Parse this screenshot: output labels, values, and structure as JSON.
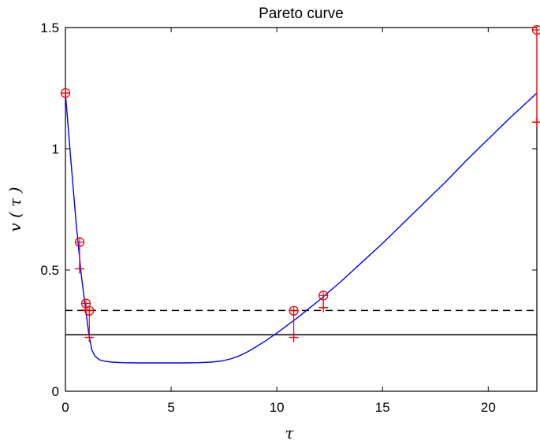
{
  "chart_data": {
    "type": "line",
    "title": "Pareto curve",
    "xlabel": "τ",
    "ylabel": "v ( τ )",
    "xlim": [
      0,
      22.3
    ],
    "ylim": [
      0,
      1.5
    ],
    "xticks": [
      {
        "value": 0,
        "label": "0"
      },
      {
        "value": 5,
        "label": "5"
      },
      {
        "value": 10,
        "label": "10"
      },
      {
        "value": 15,
        "label": "15"
      },
      {
        "value": 20,
        "label": "20"
      }
    ],
    "yticks": [
      {
        "value": 0,
        "label": "0"
      },
      {
        "value": 0.5,
        "label": "0.5"
      },
      {
        "value": 1,
        "label": "1"
      },
      {
        "value": 1.5,
        "label": "1.5"
      }
    ],
    "grid": false,
    "colors": {
      "curve": "#0000ff",
      "markers": "#ff0000",
      "lines": "#000000"
    },
    "series": [
      {
        "style": "solid",
        "color": "#0000ff",
        "x": [
          0,
          0.25,
          0.5,
          0.75,
          0.95,
          1.1,
          1.25,
          1.4,
          1.6,
          1.85,
          2.2,
          2.7,
          3.5,
          4.5,
          5.5,
          6.3,
          6.9,
          7.4,
          7.8,
          8.2,
          8.6,
          9.0,
          9.5,
          10.0,
          11.0,
          12.0,
          13.0,
          14.0,
          15.0,
          16.0,
          17.0,
          18.0,
          19.0,
          20.0,
          21.0,
          22.3
        ],
        "y": [
          1.23,
          0.96,
          0.7,
          0.48,
          0.34,
          0.24,
          0.17,
          0.145,
          0.13,
          0.124,
          0.12,
          0.118,
          0.117,
          0.117,
          0.117,
          0.118,
          0.12,
          0.125,
          0.133,
          0.145,
          0.162,
          0.182,
          0.21,
          0.24,
          0.305,
          0.375,
          0.45,
          0.53,
          0.61,
          0.695,
          0.78,
          0.865,
          0.955,
          1.04,
          1.125,
          1.23
        ]
      }
    ],
    "hlines": [
      {
        "y": 0.333,
        "style": "dashed",
        "color": "#000000"
      },
      {
        "y": 0.233,
        "style": "solid",
        "color": "#000000"
      }
    ],
    "markers": [
      {
        "x": 0.0,
        "circle": 1.23,
        "plus": 1.23
      },
      {
        "x": 0.67,
        "circle": 0.615,
        "plus": 0.505
      },
      {
        "x": 0.97,
        "circle": 0.362,
        "plus": 0.335
      },
      {
        "x": 1.13,
        "circle": 0.332,
        "plus": 0.222
      },
      {
        "x": 10.8,
        "circle": 0.332,
        "plus": 0.222
      },
      {
        "x": 12.2,
        "circle": 0.395,
        "plus": 0.345
      },
      {
        "x": 22.3,
        "circle": 1.49,
        "plus": 1.11
      }
    ]
  }
}
